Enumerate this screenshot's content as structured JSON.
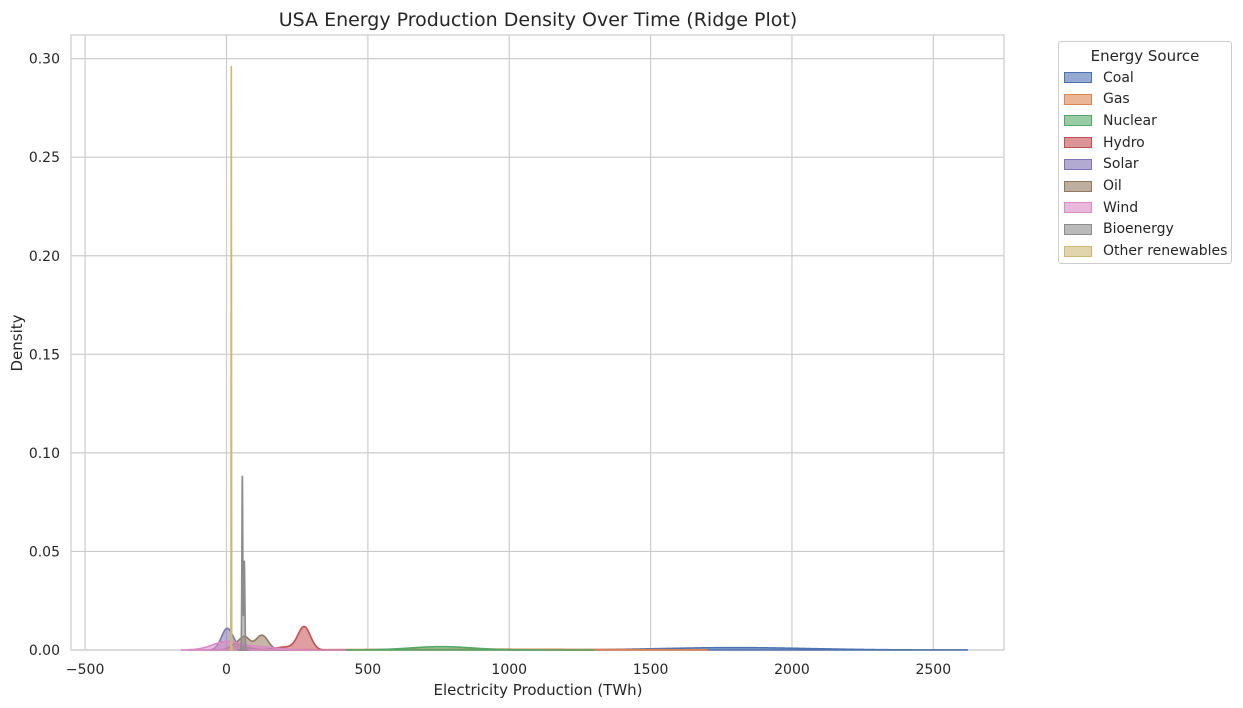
{
  "chart_data": {
    "type": "area",
    "title": "USA Energy Production Density Over Time (Ridge Plot)",
    "xlabel": "Electricity Production (TWh)",
    "ylabel": "Density",
    "xlim": [
      -550,
      2750
    ],
    "ylim": [
      0,
      0.312
    ],
    "x_ticks": [
      -500,
      0,
      500,
      1000,
      1500,
      2000,
      2500
    ],
    "x_tick_labels": [
      "−500",
      "0",
      "500",
      "1000",
      "1500",
      "2000",
      "2500"
    ],
    "y_ticks": [
      0,
      0.05,
      0.1,
      0.15,
      0.2,
      0.25,
      0.3
    ],
    "y_tick_labels": [
      "0.00",
      "0.05",
      "0.10",
      "0.15",
      "0.20",
      "0.25",
      "0.30"
    ],
    "grid": true,
    "legend_title": "Energy Source",
    "legend_position": "outside-top-right",
    "series": [
      {
        "name": "Coal",
        "color": "#4c72b0",
        "peaks": [
          {
            "x": 1800,
            "height": 0.0012,
            "width": 260
          }
        ],
        "range": [
          1000,
          2620
        ]
      },
      {
        "name": "Gas",
        "color": "#dd8452",
        "peaks": [
          {
            "x": 900,
            "height": 0.0004,
            "width": 450
          }
        ],
        "range": [
          50,
          1700
        ]
      },
      {
        "name": "Nuclear",
        "color": "#55a868",
        "peaks": [
          {
            "x": 760,
            "height": 0.0017,
            "width": 110
          }
        ],
        "range": [
          300,
          1300
        ]
      },
      {
        "name": "Hydro",
        "color": "#c44e52",
        "peaks": [
          {
            "x": 275,
            "height": 0.0115,
            "width": 22
          },
          {
            "x": 210,
            "height": 0.0015,
            "width": 40
          }
        ],
        "range": [
          120,
          420
        ]
      },
      {
        "name": "Solar",
        "color": "#8172b3",
        "peaks": [
          {
            "x": 2,
            "height": 0.0105,
            "width": 20
          },
          {
            "x": 55,
            "height": 0.0015,
            "width": 35
          }
        ],
        "range": [
          -140,
          230
        ]
      },
      {
        "name": "Oil",
        "color": "#937860",
        "peaks": [
          {
            "x": 65,
            "height": 0.0062,
            "width": 18
          },
          {
            "x": 125,
            "height": 0.0075,
            "width": 22
          },
          {
            "x": 30,
            "height": 0.0025,
            "width": 20
          }
        ],
        "range": [
          -60,
          220
        ]
      },
      {
        "name": "Wind",
        "color": "#da8bc3",
        "peaks": [
          {
            "x": 0,
            "height": 0.0042,
            "width": 50
          },
          {
            "x": 120,
            "height": 0.0015,
            "width": 60
          }
        ],
        "range": [
          -160,
          420
        ]
      },
      {
        "name": "Bioenergy",
        "color": "#8c8c8c",
        "peaks": [
          {
            "x": 56,
            "height": 0.088,
            "width": 1.6
          },
          {
            "x": 63,
            "height": 0.045,
            "width": 2
          }
        ],
        "range": [
          42,
          76
        ]
      },
      {
        "name": "Other renewables",
        "color": "#ccb974",
        "peaks": [
          {
            "x": 17,
            "height": 0.296,
            "width": 0.6
          }
        ],
        "range": [
          12,
          23
        ]
      }
    ]
  }
}
